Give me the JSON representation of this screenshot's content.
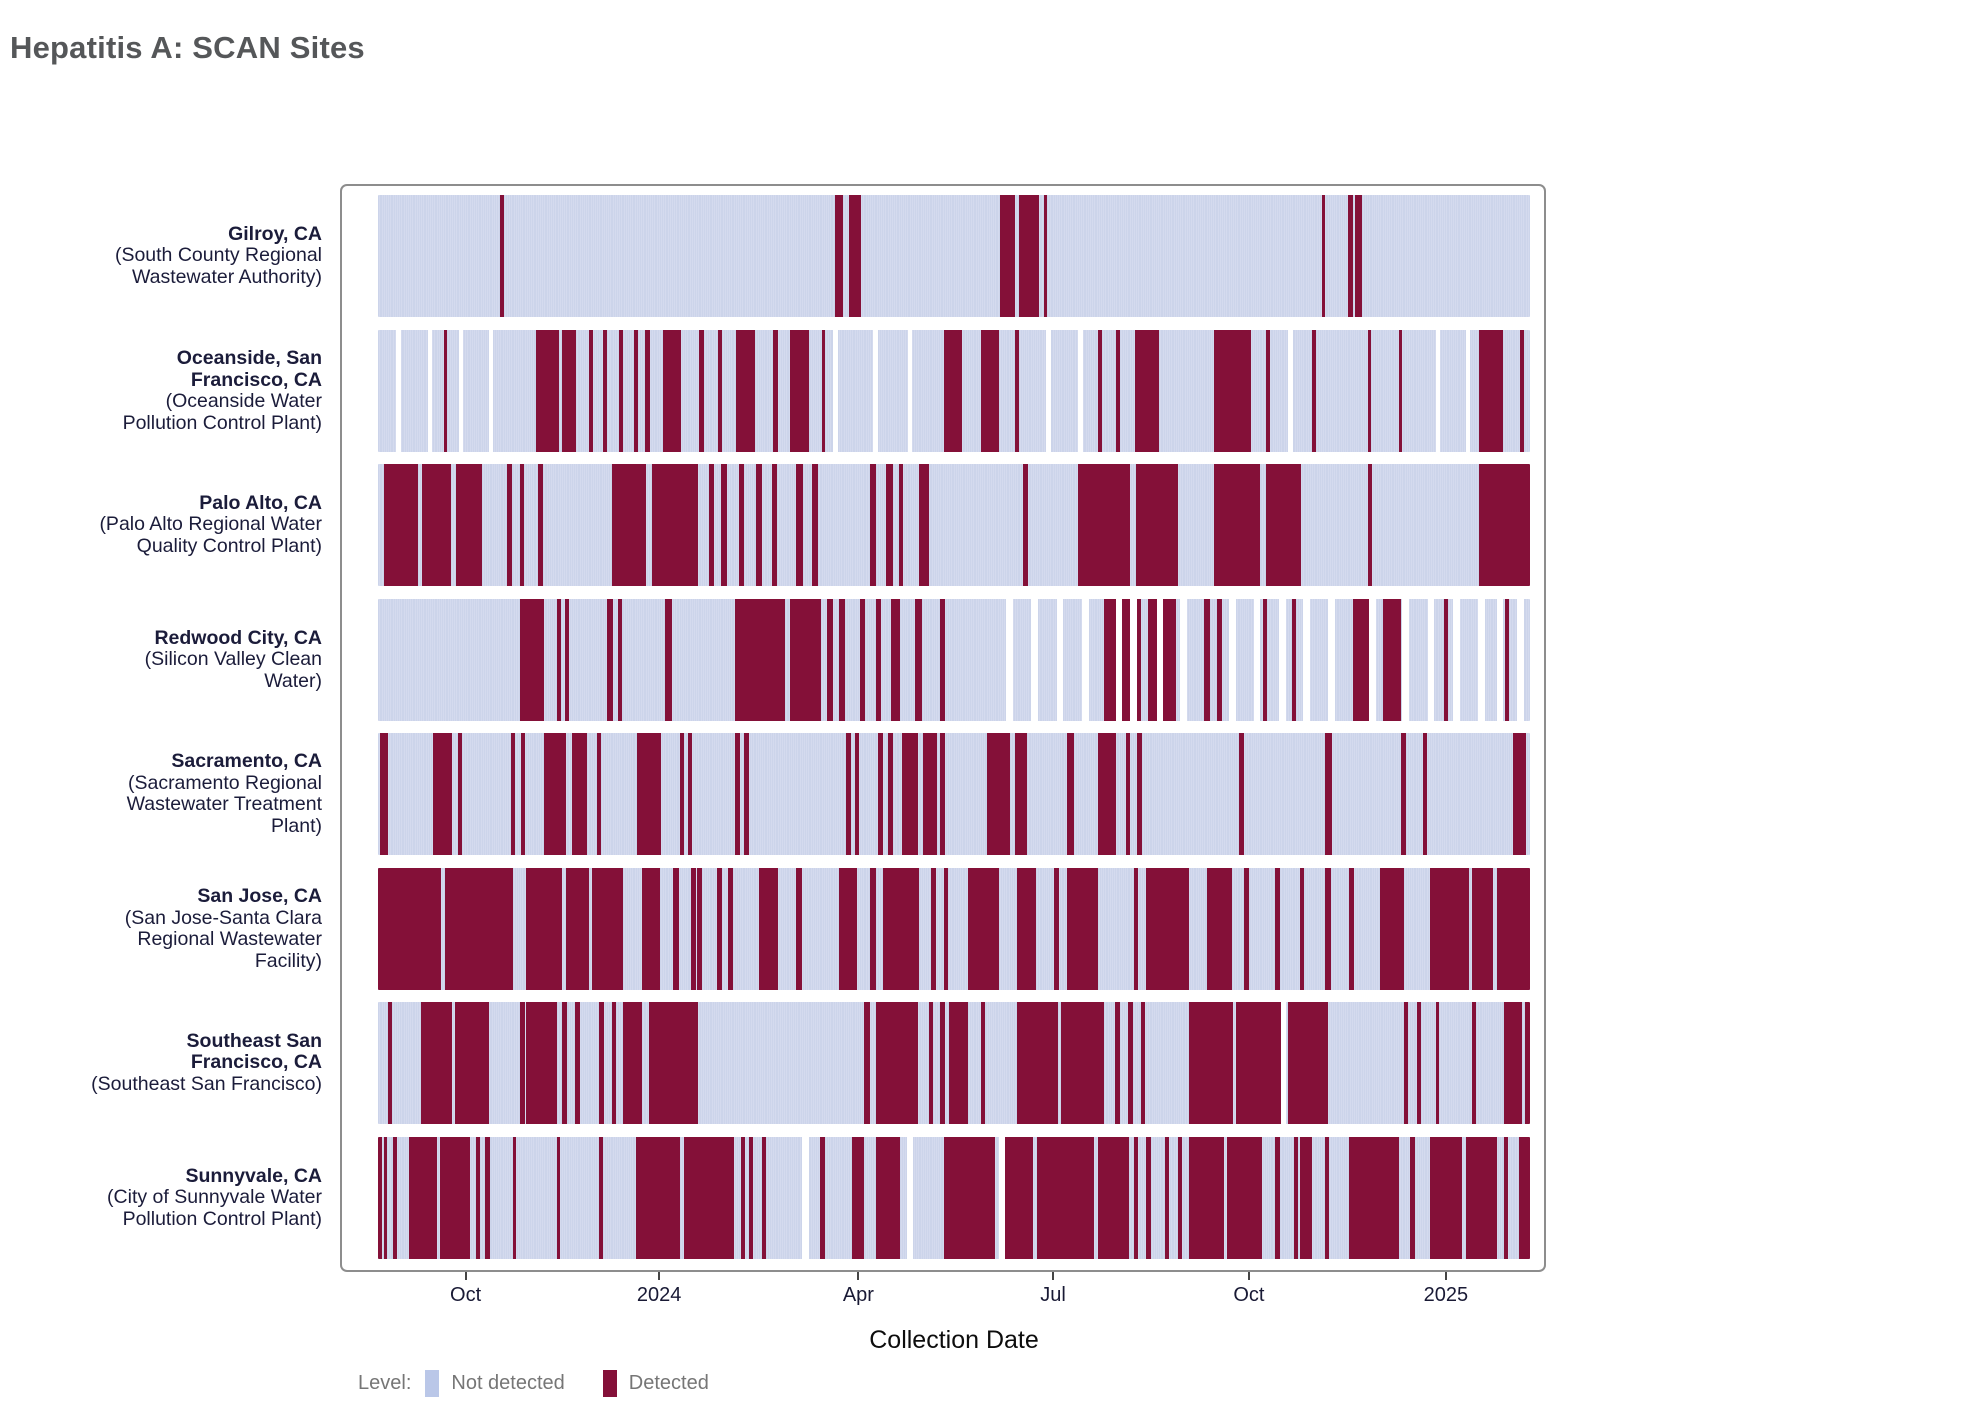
{
  "title": "Hepatitis A: SCAN Sites",
  "axis": {
    "x_title": "Collection Date",
    "ticks": [
      {
        "label": "Oct",
        "f": 0.076
      },
      {
        "label": "2024",
        "f": 0.244
      },
      {
        "label": "Apr",
        "f": 0.417
      },
      {
        "label": "Jul",
        "f": 0.586
      },
      {
        "label": "Oct",
        "f": 0.756
      },
      {
        "label": "2025",
        "f": 0.927
      }
    ]
  },
  "legend": {
    "label": "Level:",
    "items": [
      {
        "label": "Not detected",
        "color": "#bac7e8"
      },
      {
        "label": "Detected",
        "color": "#841038"
      }
    ]
  },
  "colors": {
    "not_detected": "#ccd4ea",
    "not_detected_separator": "#dbe0f2",
    "detected": "#841038",
    "missing": "#ffffff",
    "frame_border": "#8d8d8d",
    "row_label_text": "#1b1c3a",
    "tick_text": "#191a35",
    "title_text": "#555759",
    "legend_text": "#767676"
  },
  "chart_data": {
    "type": "heatmap",
    "description": "Daily wastewater detection timeline per site; maroon = Detected day, light blue = Not detected day, white = no sample. Segment values are [start_fraction, width_fraction] of the x time axis.",
    "x_domain_approx": [
      "2023-08-21",
      "2025-02-09"
    ],
    "sites": [
      {
        "name": "Gilroy, CA",
        "facility": "(South County Regional Wastewater Authority)",
        "detected": [
          [
            0.106,
            0.003
          ],
          [
            0.397,
            0.007
          ],
          [
            0.409,
            0.01
          ],
          [
            0.54,
            0.013
          ],
          [
            0.556,
            0.018
          ],
          [
            0.578,
            0.003
          ],
          [
            0.819,
            0.003
          ],
          [
            0.842,
            0.004
          ],
          [
            0.848,
            0.006
          ]
        ],
        "missing": []
      },
      {
        "name": "Oceanside, San Francisco, CA",
        "facility": "(Oceanside Water Pollution Control Plant)",
        "detected": [
          [
            0.057,
            0.003
          ],
          [
            0.137,
            0.02
          ],
          [
            0.16,
            0.012
          ],
          [
            0.183,
            0.004
          ],
          [
            0.195,
            0.004
          ],
          [
            0.209,
            0.004
          ],
          [
            0.222,
            0.004
          ],
          [
            0.232,
            0.004
          ],
          [
            0.247,
            0.016
          ],
          [
            0.279,
            0.004
          ],
          [
            0.295,
            0.004
          ],
          [
            0.311,
            0.016
          ],
          [
            0.343,
            0.004
          ],
          [
            0.358,
            0.016
          ],
          [
            0.385,
            0.003
          ],
          [
            0.491,
            0.016
          ],
          [
            0.523,
            0.016
          ],
          [
            0.553,
            0.003
          ],
          [
            0.625,
            0.003
          ],
          [
            0.641,
            0.003
          ],
          [
            0.657,
            0.021
          ],
          [
            0.726,
            0.032
          ],
          [
            0.771,
            0.003
          ],
          [
            0.811,
            0.003
          ],
          [
            0.859,
            0.003
          ],
          [
            0.886,
            0.003
          ],
          [
            0.956,
            0.021
          ],
          [
            0.991,
            0.004
          ]
        ],
        "missing": [
          [
            0.016,
            0.004
          ],
          [
            0.043,
            0.004
          ],
          [
            0.07,
            0.004
          ],
          [
            0.096,
            0.004
          ],
          [
            0.395,
            0.004
          ],
          [
            0.43,
            0.004
          ],
          [
            0.46,
            0.004
          ],
          [
            0.58,
            0.004
          ],
          [
            0.608,
            0.004
          ],
          [
            0.79,
            0.004
          ],
          [
            0.918,
            0.004
          ],
          [
            0.944,
            0.004
          ]
        ]
      },
      {
        "name": "Palo Alto, CA",
        "facility": "(Palo Alto Regional Water Quality Control Plant)",
        "detected": [
          [
            0.005,
            0.03
          ],
          [
            0.038,
            0.025
          ],
          [
            0.068,
            0.022
          ],
          [
            0.112,
            0.004
          ],
          [
            0.123,
            0.004
          ],
          [
            0.139,
            0.004
          ],
          [
            0.203,
            0.03
          ],
          [
            0.238,
            0.04
          ],
          [
            0.287,
            0.005
          ],
          [
            0.298,
            0.005
          ],
          [
            0.313,
            0.005
          ],
          [
            0.328,
            0.005
          ],
          [
            0.342,
            0.004
          ],
          [
            0.363,
            0.006
          ],
          [
            0.377,
            0.005
          ],
          [
            0.427,
            0.005
          ],
          [
            0.441,
            0.006
          ],
          [
            0.452,
            0.004
          ],
          [
            0.47,
            0.008
          ],
          [
            0.56,
            0.004
          ],
          [
            0.608,
            0.045
          ],
          [
            0.658,
            0.036
          ],
          [
            0.726,
            0.04
          ],
          [
            0.771,
            0.03
          ],
          [
            0.859,
            0.004
          ],
          [
            0.956,
            0.044
          ]
        ],
        "missing": []
      },
      {
        "name": "Redwood City, CA",
        "facility": "(Silicon Valley Clean Water)",
        "detected": [
          [
            0.123,
            0.021
          ],
          [
            0.155,
            0.004
          ],
          [
            0.162,
            0.004
          ],
          [
            0.199,
            0.005
          ],
          [
            0.208,
            0.004
          ],
          [
            0.249,
            0.006
          ],
          [
            0.31,
            0.043
          ],
          [
            0.358,
            0.027
          ],
          [
            0.39,
            0.005
          ],
          [
            0.4,
            0.005
          ],
          [
            0.418,
            0.005
          ],
          [
            0.432,
            0.005
          ],
          [
            0.445,
            0.008
          ],
          [
            0.466,
            0.006
          ],
          [
            0.488,
            0.004
          ],
          [
            0.63,
            0.032
          ],
          [
            0.668,
            0.025
          ],
          [
            0.717,
            0.005
          ],
          [
            0.728,
            0.005
          ],
          [
            0.768,
            0.004
          ],
          [
            0.793,
            0.004
          ],
          [
            0.846,
            0.02
          ],
          [
            0.872,
            0.016
          ],
          [
            0.925,
            0.004
          ],
          [
            0.978,
            0.004
          ]
        ],
        "missing": [
          [
            0.545,
            0.006
          ],
          [
            0.567,
            0.006
          ],
          [
            0.589,
            0.006
          ],
          [
            0.611,
            0.006
          ],
          [
            0.641,
            0.005
          ],
          [
            0.653,
            0.006
          ],
          [
            0.676,
            0.005
          ],
          [
            0.696,
            0.006
          ],
          [
            0.739,
            0.006
          ],
          [
            0.76,
            0.006
          ],
          [
            0.782,
            0.006
          ],
          [
            0.803,
            0.006
          ],
          [
            0.825,
            0.006
          ],
          [
            0.86,
            0.006
          ],
          [
            0.889,
            0.006
          ],
          [
            0.911,
            0.006
          ],
          [
            0.933,
            0.006
          ],
          [
            0.955,
            0.006
          ],
          [
            0.971,
            0.006
          ],
          [
            0.989,
            0.006
          ]
        ]
      },
      {
        "name": "Sacramento, CA",
        "facility": "(Sacramento Regional Wastewater Treatment Plant)",
        "detected": [
          [
            0.002,
            0.007
          ],
          [
            0.048,
            0.016
          ],
          [
            0.069,
            0.004
          ],
          [
            0.115,
            0.004
          ],
          [
            0.124,
            0.004
          ],
          [
            0.144,
            0.019
          ],
          [
            0.168,
            0.013
          ],
          [
            0.19,
            0.004
          ],
          [
            0.225,
            0.021
          ],
          [
            0.262,
            0.004
          ],
          [
            0.269,
            0.004
          ],
          [
            0.31,
            0.004
          ],
          [
            0.318,
            0.004
          ],
          [
            0.406,
            0.005
          ],
          [
            0.414,
            0.004
          ],
          [
            0.434,
            0.004
          ],
          [
            0.443,
            0.004
          ],
          [
            0.455,
            0.014
          ],
          [
            0.473,
            0.012
          ],
          [
            0.488,
            0.004
          ],
          [
            0.529,
            0.02
          ],
          [
            0.553,
            0.01
          ],
          [
            0.598,
            0.006
          ],
          [
            0.625,
            0.016
          ],
          [
            0.649,
            0.004
          ],
          [
            0.659,
            0.004
          ],
          [
            0.747,
            0.005
          ],
          [
            0.822,
            0.006
          ],
          [
            0.888,
            0.004
          ],
          [
            0.907,
            0.004
          ],
          [
            0.985,
            0.012
          ]
        ],
        "missing": []
      },
      {
        "name": "San Jose, CA",
        "facility": "(San Jose-Santa Clara Regional Wastewater Facility)",
        "detected": [
          [
            0.0,
            0.055
          ],
          [
            0.058,
            0.059
          ],
          [
            0.128,
            0.032
          ],
          [
            0.163,
            0.02
          ],
          [
            0.186,
            0.027
          ],
          [
            0.229,
            0.016
          ],
          [
            0.256,
            0.005
          ],
          [
            0.272,
            0.004
          ],
          [
            0.277,
            0.004
          ],
          [
            0.294,
            0.005
          ],
          [
            0.304,
            0.004
          ],
          [
            0.331,
            0.016
          ],
          [
            0.363,
            0.005
          ],
          [
            0.4,
            0.016
          ],
          [
            0.427,
            0.005
          ],
          [
            0.438,
            0.032
          ],
          [
            0.48,
            0.004
          ],
          [
            0.491,
            0.004
          ],
          [
            0.512,
            0.027
          ],
          [
            0.555,
            0.016
          ],
          [
            0.587,
            0.004
          ],
          [
            0.598,
            0.027
          ],
          [
            0.656,
            0.004
          ],
          [
            0.667,
            0.037
          ],
          [
            0.72,
            0.021
          ],
          [
            0.752,
            0.004
          ],
          [
            0.779,
            0.004
          ],
          [
            0.8,
            0.004
          ],
          [
            0.822,
            0.005
          ],
          [
            0.843,
            0.004
          ],
          [
            0.87,
            0.021
          ],
          [
            0.913,
            0.034
          ],
          [
            0.95,
            0.018
          ],
          [
            0.971,
            0.029
          ]
        ],
        "missing": []
      },
      {
        "name": "Southeast San Francisco, CA",
        "facility": "(Southeast San Francisco)",
        "detected": [
          [
            0.009,
            0.003
          ],
          [
            0.037,
            0.027
          ],
          [
            0.067,
            0.029
          ],
          [
            0.123,
            0.005
          ],
          [
            0.128,
            0.027
          ],
          [
            0.16,
            0.004
          ],
          [
            0.171,
            0.004
          ],
          [
            0.192,
            0.004
          ],
          [
            0.203,
            0.004
          ],
          [
            0.213,
            0.016
          ],
          [
            0.235,
            0.043
          ],
          [
            0.422,
            0.005
          ],
          [
            0.432,
            0.037
          ],
          [
            0.478,
            0.004
          ],
          [
            0.488,
            0.004
          ],
          [
            0.496,
            0.016
          ],
          [
            0.523,
            0.004
          ],
          [
            0.555,
            0.035
          ],
          [
            0.593,
            0.037
          ],
          [
            0.64,
            0.004
          ],
          [
            0.651,
            0.004
          ],
          [
            0.662,
            0.004
          ],
          [
            0.704,
            0.038
          ],
          [
            0.745,
            0.039
          ],
          [
            0.79,
            0.035
          ],
          [
            0.891,
            0.003
          ],
          [
            0.902,
            0.003
          ],
          [
            0.918,
            0.003
          ],
          [
            0.95,
            0.003
          ],
          [
            0.977,
            0.016
          ],
          [
            0.996,
            0.004
          ]
        ],
        "missing": [
          [
            0.784,
            0.004
          ]
        ]
      },
      {
        "name": "Sunnyvale, CA",
        "facility": "(City of Sunnyvale Water Pollution Control Plant)",
        "detected": [
          [
            0.0,
            0.003
          ],
          [
            0.005,
            0.003
          ],
          [
            0.013,
            0.003
          ],
          [
            0.027,
            0.024
          ],
          [
            0.054,
            0.026
          ],
          [
            0.085,
            0.004
          ],
          [
            0.093,
            0.004
          ],
          [
            0.117,
            0.003
          ],
          [
            0.155,
            0.003
          ],
          [
            0.192,
            0.003
          ],
          [
            0.224,
            0.038
          ],
          [
            0.266,
            0.043
          ],
          [
            0.315,
            0.004
          ],
          [
            0.322,
            0.004
          ],
          [
            0.333,
            0.004
          ],
          [
            0.384,
            0.004
          ],
          [
            0.411,
            0.011
          ],
          [
            0.432,
            0.021
          ],
          [
            0.491,
            0.045
          ],
          [
            0.544,
            0.025
          ],
          [
            0.572,
            0.026
          ],
          [
            0.598,
            0.024
          ],
          [
            0.625,
            0.027
          ],
          [
            0.656,
            0.004
          ],
          [
            0.667,
            0.004
          ],
          [
            0.683,
            0.004
          ],
          [
            0.694,
            0.004
          ],
          [
            0.704,
            0.03
          ],
          [
            0.737,
            0.03
          ],
          [
            0.779,
            0.004
          ],
          [
            0.795,
            0.004
          ],
          [
            0.8,
            0.011
          ],
          [
            0.822,
            0.004
          ],
          [
            0.843,
            0.043
          ],
          [
            0.896,
            0.004
          ],
          [
            0.913,
            0.028
          ],
          [
            0.944,
            0.027
          ],
          [
            0.977,
            0.004
          ],
          [
            0.99,
            0.01
          ]
        ],
        "missing": [
          [
            0.368,
            0.006
          ],
          [
            0.459,
            0.005
          ],
          [
            0.539,
            0.005
          ]
        ]
      }
    ]
  }
}
